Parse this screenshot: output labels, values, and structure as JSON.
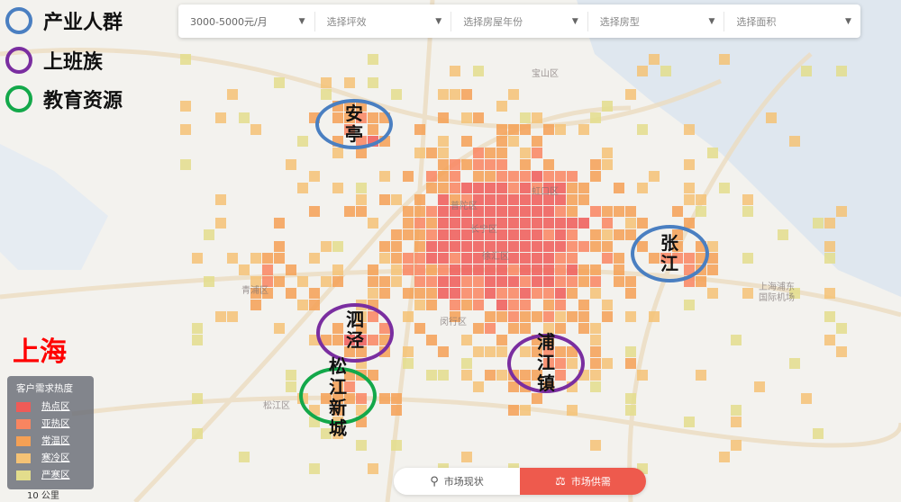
{
  "filters": [
    {
      "value": "3000-5000元/月"
    },
    {
      "placeholder": "选择坪效"
    },
    {
      "placeholder": "选择房屋年份"
    },
    {
      "placeholder": "选择房型"
    },
    {
      "placeholder": "选择面积"
    }
  ],
  "overlay_legend": [
    {
      "label": "产业人群",
      "color": "#4a7fc1"
    },
    {
      "label": "上班族",
      "color": "#7a2ea0"
    },
    {
      "label": "教育资源",
      "color": "#13a84a"
    }
  ],
  "city": "上海",
  "heat_legend": {
    "title": "客户需求热度",
    "items": [
      {
        "label": "热点区",
        "color": "#ef5b57"
      },
      {
        "label": "亚热区",
        "color": "#f98560"
      },
      {
        "label": "常温区",
        "color": "#f4a055"
      },
      {
        "label": "寒冷区",
        "color": "#f4c275"
      },
      {
        "label": "严寒区",
        "color": "#e3dd8c"
      }
    ]
  },
  "scale": "10 公里",
  "annotations": [
    {
      "text": "安亭",
      "group": "产业人群"
    },
    {
      "text": "张江",
      "group": "产业人群"
    },
    {
      "text": "泗泾",
      "group": "上班族"
    },
    {
      "text": "浦江镇",
      "group": "上班族"
    },
    {
      "text": "松江新城",
      "group": "教育资源"
    }
  ],
  "map_labels": [
    "宝山区",
    "虹口区",
    "普陀区",
    "长宁区",
    "徐汇区",
    "闵行区",
    "青浦区",
    "松江区",
    "上海浦东国际机场"
  ],
  "view_toggle": {
    "options": [
      "市场现状",
      "市场供需"
    ],
    "active": "市场供需"
  }
}
